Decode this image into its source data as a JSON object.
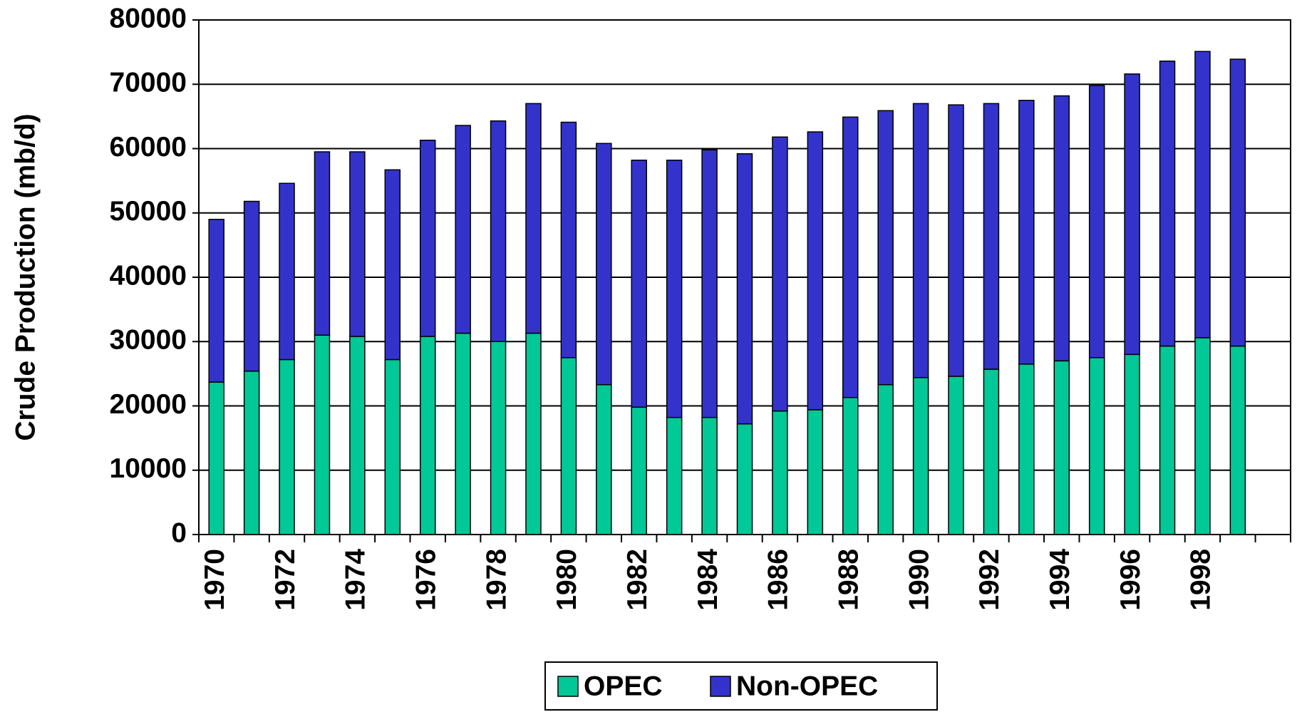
{
  "chart_data": {
    "type": "stacked_bar",
    "y_label": "Crude Production (mb/d)",
    "categories": [
      "1970",
      null,
      "1972",
      null,
      "1974",
      null,
      "1976",
      null,
      "1978",
      null,
      "1980",
      null,
      "1982",
      null,
      "1984",
      null,
      "1986",
      null,
      "1988",
      null,
      "1990",
      null,
      "1992",
      null,
      "1994",
      null,
      "1996",
      null,
      "1998",
      null
    ],
    "series": [
      {
        "name": "OPEC",
        "color": "#00c896",
        "values": [
          23700,
          25400,
          27200,
          31000,
          30800,
          27200,
          30800,
          31300,
          30000,
          31300,
          27500,
          23300,
          19800,
          18200,
          18200,
          17200,
          19200,
          19400,
          21300,
          23300,
          24400,
          24600,
          25700,
          26500,
          27000,
          27500,
          28000,
          29300,
          30600,
          29300
        ]
      },
      {
        "name": "Non-OPEC",
        "color": "#3333cc",
        "values": [
          25300,
          26400,
          27400,
          28500,
          28700,
          29500,
          30500,
          32300,
          34300,
          35700,
          36600,
          37500,
          38400,
          40000,
          41600,
          42000,
          42600,
          43200,
          43600,
          42600,
          42600,
          42200,
          41300,
          41000,
          41200,
          42300,
          43600,
          44300,
          44500,
          44600
        ]
      }
    ],
    "ylim": [
      0,
      80000
    ],
    "yticks": [
      0,
      10000,
      20000,
      30000,
      40000,
      50000,
      60000,
      70000,
      80000
    ],
    "grid": true,
    "legend": "bottom"
  }
}
